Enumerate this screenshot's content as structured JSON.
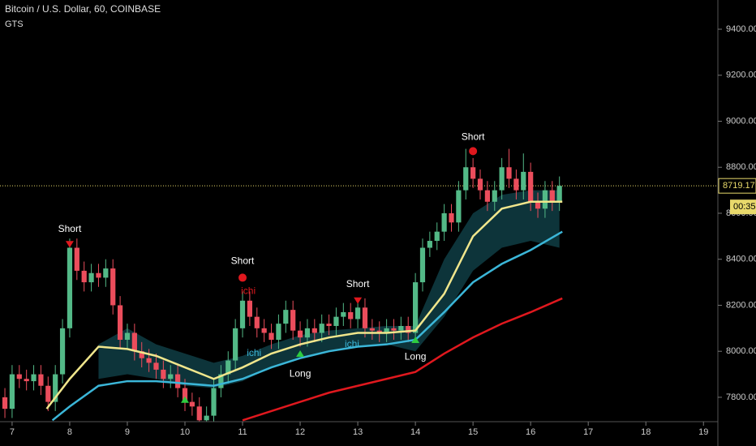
{
  "chart_data": {
    "type": "candlestick",
    "title": "Bitcoin / U.S. Dollar, 60, COINBASE",
    "subtitle": "GTS",
    "x": [
      6.875,
      7,
      7.125,
      7.25,
      7.375,
      7.5,
      7.625,
      7.75,
      7.875,
      8,
      8.125,
      8.25,
      8.375,
      8.5,
      8.625,
      8.75,
      8.875,
      9,
      9.125,
      9.25,
      9.375,
      9.5,
      9.625,
      9.75,
      9.875,
      10,
      10.125,
      10.25,
      10.375,
      10.5,
      10.625,
      10.75,
      10.875,
      11,
      11.125,
      11.25,
      11.375,
      11.5,
      11.625,
      11.75,
      11.875,
      12,
      12.125,
      12.25,
      12.375,
      12.5,
      12.625,
      12.75,
      12.875,
      13,
      13.125,
      13.25,
      13.375,
      13.5,
      13.625,
      13.75,
      13.875,
      14,
      14.125,
      14.25,
      14.375,
      14.5,
      14.625,
      14.75,
      14.875,
      15,
      15.125,
      15.25,
      15.375,
      15.5,
      15.625,
      15.75,
      15.875,
      16,
      16.125,
      16.25,
      16.375,
      16.5
    ],
    "open": [
      7800,
      7750,
      7900,
      7880,
      7870,
      7900,
      7850,
      7780,
      7900,
      8100,
      8450,
      8350,
      8300,
      8340,
      8320,
      8360,
      8200,
      8050,
      8080,
      8000,
      7970,
      7950,
      7920,
      7880,
      7900,
      7840,
      7780,
      7760,
      7700,
      7720,
      7840,
      7900,
      7960,
      8100,
      8220,
      8150,
      8100,
      8080,
      8050,
      8120,
      8180,
      8090,
      8060,
      8100,
      8080,
      8120,
      8110,
      8150,
      8170,
      8140,
      8190,
      8100,
      8090,
      8080,
      8100,
      8090,
      8110,
      8080,
      8300,
      8450,
      8480,
      8520,
      8600,
      8560,
      8700,
      8800,
      8750,
      8700,
      8650,
      8700,
      8800,
      8750,
      8700,
      8780,
      8650,
      8620,
      8700,
      8650
    ],
    "high": [
      7840,
      7940,
      7940,
      7920,
      7940,
      7940,
      7890,
      7940,
      8140,
      8490,
      8490,
      8390,
      8380,
      8380,
      8400,
      8400,
      8240,
      8120,
      8120,
      8040,
      8010,
      7990,
      7960,
      7940,
      7940,
      7880,
      7820,
      7800,
      7760,
      7880,
      7940,
      8000,
      8140,
      8260,
      8260,
      8190,
      8140,
      8120,
      8160,
      8220,
      8220,
      8130,
      8140,
      8140,
      8160,
      8160,
      8190,
      8210,
      8210,
      8230,
      8230,
      8140,
      8130,
      8140,
      8140,
      8150,
      8150,
      8340,
      8490,
      8520,
      8560,
      8640,
      8640,
      8740,
      8880,
      8840,
      8790,
      8740,
      8740,
      8840,
      8880,
      8790,
      8860,
      8820,
      8690,
      8740,
      8740,
      8760
    ],
    "low": [
      7710,
      7710,
      7840,
      7830,
      7830,
      7810,
      7740,
      7740,
      7860,
      8060,
      8310,
      8260,
      8260,
      8280,
      8280,
      8160,
      8010,
      8010,
      7960,
      7930,
      7910,
      7880,
      7840,
      7840,
      7800,
      7740,
      7720,
      7660,
      7660,
      7680,
      7800,
      7860,
      7920,
      8060,
      8110,
      8060,
      8040,
      8010,
      8010,
      8080,
      8050,
      8020,
      8020,
      8040,
      8040,
      8070,
      8070,
      8110,
      8100,
      8100,
      8060,
      8050,
      8040,
      8040,
      8050,
      8050,
      8040,
      8040,
      8260,
      8410,
      8440,
      8480,
      8520,
      8520,
      8660,
      8710,
      8660,
      8610,
      8610,
      8660,
      8710,
      8660,
      8660,
      8610,
      8580,
      8580,
      8610,
      8610
    ],
    "close": [
      7750,
      7900,
      7880,
      7870,
      7900,
      7850,
      7780,
      7900,
      8100,
      8450,
      8350,
      8300,
      8340,
      8320,
      8360,
      8200,
      8050,
      8080,
      8000,
      7970,
      7950,
      7920,
      7880,
      7900,
      7840,
      7780,
      7760,
      7700,
      7720,
      7840,
      7900,
      7960,
      8100,
      8220,
      8150,
      8100,
      8080,
      8050,
      8120,
      8180,
      8090,
      8060,
      8100,
      8080,
      8120,
      8110,
      8150,
      8170,
      8140,
      8190,
      8100,
      8090,
      8080,
      8100,
      8090,
      8110,
      8080,
      8300,
      8450,
      8480,
      8520,
      8600,
      8560,
      8700,
      8800,
      8750,
      8700,
      8650,
      8700,
      8800,
      8750,
      8700,
      8780,
      8650,
      8620,
      8700,
      8650,
      8719.17
    ],
    "up_color": "#53b987",
    "down_color": "#eb4d5c",
    "cloud": {
      "color": "#0e3a40",
      "x": [
        8.5,
        9,
        9.5,
        10,
        10.5,
        11,
        11.5,
        12,
        12.5,
        13,
        13.5,
        14,
        14.5,
        15,
        15.5,
        16,
        16.5
      ],
      "upper": [
        8030,
        8100,
        8030,
        7990,
        7950,
        7980,
        8030,
        8070,
        8090,
        8100,
        8110,
        8110,
        8400,
        8600,
        8680,
        8700,
        8700
      ],
      "lower": [
        7880,
        7900,
        7880,
        7850,
        7840,
        7870,
        7930,
        7970,
        8000,
        8020,
        8030,
        8000,
        8150,
        8350,
        8450,
        8480,
        8450
      ]
    },
    "series": [
      {
        "color": "#f0e68c",
        "x": [
          7.6,
          8,
          8.5,
          9,
          9.5,
          10,
          10.5,
          11,
          11.5,
          12,
          12.5,
          13,
          13.5,
          14,
          14.5,
          15,
          15.5,
          16,
          16.55
        ],
        "values": [
          7750,
          7880,
          8020,
          8010,
          7980,
          7930,
          7880,
          7930,
          7990,
          8030,
          8060,
          8080,
          8080,
          8090,
          8250,
          8500,
          8620,
          8650,
          8650
        ]
      },
      {
        "color": "#3bb6d8",
        "x": [
          7.7,
          8,
          8.5,
          9,
          9.5,
          10,
          10.5,
          11,
          11.5,
          12,
          12.5,
          13,
          13.5,
          14,
          14.5,
          15,
          15.5,
          16,
          16.55
        ],
        "values": [
          7700,
          7760,
          7850,
          7870,
          7870,
          7860,
          7850,
          7880,
          7930,
          7970,
          8000,
          8020,
          8030,
          8050,
          8170,
          8300,
          8380,
          8440,
          8520
        ]
      },
      {
        "color": "#e0181e",
        "x": [
          11,
          11.5,
          12,
          12.5,
          13,
          13.5,
          14,
          14.5,
          15,
          15.5,
          16,
          16.55
        ],
        "values": [
          7700,
          7740,
          7780,
          7820,
          7850,
          7880,
          7910,
          7990,
          8060,
          8120,
          8170,
          8230
        ]
      }
    ],
    "annotations": [
      {
        "text": "Short",
        "x": 8.0,
        "y": 8530,
        "color": "#ffffff"
      },
      {
        "text": "Short",
        "x": 11.0,
        "y": 8390,
        "color": "#ffffff"
      },
      {
        "text": "ichi",
        "x": 11.1,
        "y": 8260,
        "color": "#e0181e"
      },
      {
        "text": "ichi",
        "x": 11.2,
        "y": 7990,
        "color": "#3bb6d8"
      },
      {
        "text": "Long",
        "x": 12.0,
        "y": 7900,
        "color": "#ffffff"
      },
      {
        "text": "Short",
        "x": 13.0,
        "y": 8290,
        "color": "#ffffff"
      },
      {
        "text": "ichi",
        "x": 12.9,
        "y": 8030,
        "color": "#3bb6d8"
      },
      {
        "text": "Long",
        "x": 14.0,
        "y": 7975,
        "color": "#ffffff"
      },
      {
        "text": "Short",
        "x": 15.0,
        "y": 8930,
        "color": "#ffffff"
      }
    ],
    "signals": [
      {
        "x": 8.0,
        "y": 8465,
        "shape": "triangle-down",
        "color": "#e0181e"
      },
      {
        "x": 11.0,
        "y": 8320,
        "shape": "circle",
        "color": "#e0181e"
      },
      {
        "x": 13.0,
        "y": 8220,
        "shape": "triangle-down",
        "color": "#e0181e"
      },
      {
        "x": 15.0,
        "y": 8870,
        "shape": "circle",
        "color": "#e0181e"
      },
      {
        "x": 12.0,
        "y": 7990,
        "shape": "triangle-up",
        "color": "#2ecc40"
      },
      {
        "x": 14.0,
        "y": 8050,
        "shape": "triangle-up",
        "color": "#2ecc40"
      },
      {
        "x": 10.0,
        "y": 7790,
        "shape": "triangle-up",
        "color": "#2ecc40"
      }
    ],
    "last_price": {
      "value": 8719.17,
      "label": "8719.17"
    },
    "countdown": "00:35",
    "xlim": [
      6.79,
      19.25
    ],
    "ylim": [
      7694,
      9527
    ],
    "xticks": [
      7,
      8,
      9,
      10,
      11,
      12,
      13,
      14,
      15,
      16,
      17,
      18,
      19
    ],
    "yticks": [
      {
        "value": 7800,
        "label": "7800.00"
      },
      {
        "value": 8000,
        "label": "8000.00"
      },
      {
        "value": 8200,
        "label": "8200.00"
      },
      {
        "value": 8400,
        "label": "8400.00"
      },
      {
        "value": 8600,
        "label": "8600.00"
      },
      {
        "value": 8800,
        "label": "8800.00"
      },
      {
        "value": 9000,
        "label": "9000.00"
      },
      {
        "value": 9200,
        "label": "9200.00"
      },
      {
        "value": 9400,
        "label": "9400.00"
      }
    ]
  }
}
